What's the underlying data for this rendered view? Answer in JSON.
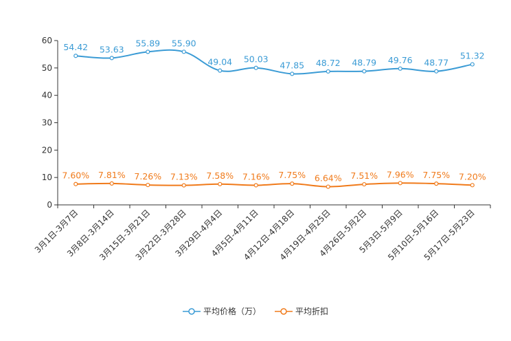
{
  "chart_data": {
    "type": "line",
    "categories": [
      "3月1日-3月7日",
      "3月8日-3月14日",
      "3月15日-3月21日",
      "3月22日-3月28日",
      "3月29日-4月4日",
      "4月5日-4月11日",
      "4月12日-4月18日",
      "4月19日-4月25日",
      "4月26日-5月2日",
      "5月3日-5月9日",
      "5月10日-5月16日",
      "5月17日-5月23日"
    ],
    "series": [
      {
        "name": "平均价格（万）",
        "color": "#3a9bd5",
        "values": [
          54.42,
          53.63,
          55.89,
          55.9,
          49.04,
          50.03,
          47.85,
          48.72,
          48.79,
          49.76,
          48.77,
          51.32
        ],
        "labels": [
          "54.42",
          "53.63",
          "55.89",
          "55.90",
          "49.04",
          "50.03",
          "47.85",
          "48.72",
          "48.79",
          "49.76",
          "48.77",
          "51.32"
        ]
      },
      {
        "name": "平均折扣",
        "color": "#f07a1a",
        "values": [
          7.6,
          7.81,
          7.26,
          7.13,
          7.58,
          7.16,
          7.75,
          6.64,
          7.51,
          7.96,
          7.75,
          7.2
        ],
        "labels": [
          "7.60%",
          "7.81%",
          "7.26%",
          "7.13%",
          "7.58%",
          "7.16%",
          "7.75%",
          "6.64%",
          "7.51%",
          "7.96%",
          "7.75%",
          "7.20%"
        ]
      }
    ],
    "yticks": [
      "0",
      "10",
      "20",
      "30",
      "40",
      "50",
      "60"
    ],
    "ylim": [
      0,
      60
    ],
    "xlabel": "",
    "ylabel": "",
    "title": "",
    "legend_position": "bottom"
  },
  "legend": {
    "price_label": "平均价格（万）",
    "discount_label": "平均折扣"
  }
}
